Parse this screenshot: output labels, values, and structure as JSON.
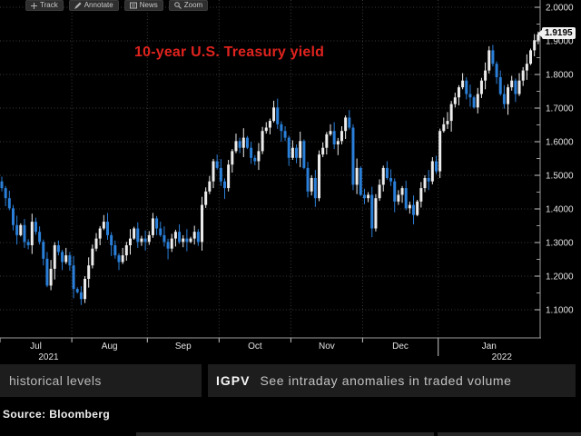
{
  "toolbar": {
    "items": [
      {
        "label": "Track",
        "icon": "track-plus-icon"
      },
      {
        "label": "Annotate",
        "icon": "annotate-pencil-icon"
      },
      {
        "label": "News",
        "icon": "news-icon"
      },
      {
        "label": "Zoom",
        "icon": "zoom-magnifier-icon"
      }
    ]
  },
  "chart_data": {
    "type": "candlestick",
    "title": "10-year U.S. Treasury yield",
    "title_color": "#e0231e",
    "up_color": "#ececec",
    "down_color": "#2a7fd9",
    "grid": "dotted",
    "legend_position": "none",
    "ylim": [
      1.016,
      2.0
    ],
    "y_ticks": [
      {
        "value": 2.0,
        "label": "2.0000"
      },
      {
        "value": 1.9,
        "label": "1.9000"
      },
      {
        "value": 1.8,
        "label": "1.8000"
      },
      {
        "value": 1.7,
        "label": "1.7000"
      },
      {
        "value": 1.6,
        "label": "1.6000"
      },
      {
        "value": 1.5,
        "label": "1.5000"
      },
      {
        "value": 1.4,
        "label": "1.4000"
      },
      {
        "value": 1.3,
        "label": "1.3000"
      },
      {
        "value": 1.2,
        "label": "1.2000"
      },
      {
        "value": 1.1,
        "label": "1.1000"
      }
    ],
    "minor_tick_step": 0.05,
    "month_labels": [
      "Jul",
      "Aug",
      "Sep",
      "Oct",
      "Nov",
      "Dec",
      "Jan"
    ],
    "month_boundaries": [
      0,
      19,
      39,
      58,
      77,
      96,
      116,
      143
    ],
    "year_labels": [
      {
        "text": "2021",
        "month_index": 0
      },
      {
        "text": "2022",
        "month_index": 6
      }
    ],
    "year_separator_month_index": 6,
    "first_open": 1.482,
    "closes": [
      1.462,
      1.432,
      1.402,
      1.352,
      1.322,
      1.352,
      1.302,
      1.292,
      1.362,
      1.332,
      1.302,
      1.252,
      1.172,
      1.222,
      1.292,
      1.272,
      1.242,
      1.262,
      1.232,
      1.162,
      1.152,
      1.132,
      1.192,
      1.232,
      1.282,
      1.312,
      1.342,
      1.362,
      1.322,
      1.292,
      1.262,
      1.242,
      1.262,
      1.292,
      1.312,
      1.342,
      1.302,
      1.312,
      1.302,
      1.322,
      1.372,
      1.342,
      1.322,
      1.302,
      1.282,
      1.312,
      1.332,
      1.302,
      1.312,
      1.302,
      1.312,
      1.332,
      1.302,
      1.412,
      1.452,
      1.482,
      1.542,
      1.522,
      1.482,
      1.462,
      1.532,
      1.572,
      1.602,
      1.582,
      1.612,
      1.582,
      1.552,
      1.542,
      1.572,
      1.632,
      1.642,
      1.662,
      1.702,
      1.652,
      1.632,
      1.612,
      1.552,
      1.582,
      1.552,
      1.602,
      1.522,
      1.452,
      1.492,
      1.432,
      1.562,
      1.582,
      1.622,
      1.632,
      1.592,
      1.602,
      1.632,
      1.672,
      1.642,
      1.472,
      1.522,
      1.442,
      1.432,
      1.442,
      1.342,
      1.432,
      1.472,
      1.522,
      1.492,
      1.482,
      1.422,
      1.442,
      1.462,
      1.402,
      1.412,
      1.382,
      1.422,
      1.462,
      1.492,
      1.482,
      1.542,
      1.512,
      1.632,
      1.652,
      1.662,
      1.712,
      1.732,
      1.762,
      1.782,
      1.742,
      1.732,
      1.702,
      1.742,
      1.782,
      1.812,
      1.872,
      1.832,
      1.792,
      1.742,
      1.712,
      1.762,
      1.782,
      1.742,
      1.782,
      1.812,
      1.832,
      1.872,
      1.902,
      1.9195
    ],
    "last_value_label": "1.9195"
  },
  "footer": {
    "left_text": "historical levels",
    "ticker": "IGPV",
    "right_text": "See intraday anomalies in traded volume",
    "source": "Source: Bloomberg"
  }
}
